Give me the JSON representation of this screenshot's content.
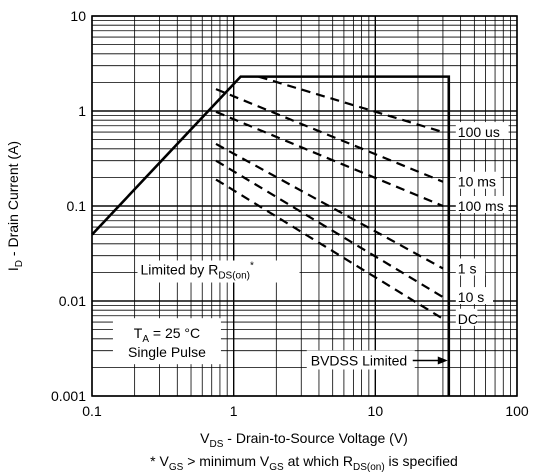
{
  "chart_data": {
    "type": "line",
    "xlabel": {
      "main": "V",
      "sub": "DS",
      "rest": " - Drain-to-Source Voltage (V)"
    },
    "ylabel": {
      "main": "I",
      "sub": "D",
      "rest": " - Drain Current (A)"
    },
    "footnote": {
      "p1": "* V",
      "s1": "GS",
      "p2": " > minimum V",
      "s2": "GS",
      "p3": " at which R",
      "s3": "DS(on)",
      "p4": " is specified"
    },
    "x_scale": "log",
    "y_scale": "log",
    "xlim": [
      0.1,
      100
    ],
    "ylim": [
      0.001,
      10
    ],
    "x_ticks": [
      {
        "value": 0.1,
        "label": "0.1"
      },
      {
        "value": 1,
        "label": "1"
      },
      {
        "value": 10,
        "label": "10"
      },
      {
        "value": 100,
        "label": "100"
      }
    ],
    "y_ticks": [
      {
        "value": 0.001,
        "label": "0.001"
      },
      {
        "value": 0.01,
        "label": "0.01"
      },
      {
        "value": 0.1,
        "label": "0.1"
      },
      {
        "value": 1,
        "label": "1"
      },
      {
        "value": 10,
        "label": "10"
      }
    ],
    "grid": true,
    "safe_operating_area": {
      "x": [
        0.1,
        1.12,
        1.12,
        33,
        33
      ],
      "y": [
        0.05,
        2.3,
        2.3,
        2.3,
        0.001
      ]
    },
    "pulse_lines": [
      {
        "label": "100 us",
        "label_value": 0.6,
        "x": [
          1.5,
          30
        ],
        "y": [
          2.3,
          0.6
        ]
      },
      {
        "label": "10 ms",
        "label_value": 0.18,
        "x": [
          0.75,
          30
        ],
        "y": [
          1.7,
          0.18
        ]
      },
      {
        "label": "100 ms",
        "label_value": 0.1,
        "x": [
          0.75,
          30
        ],
        "y": [
          0.98,
          0.1
        ]
      },
      {
        "label": "1 s",
        "label_value": 0.022,
        "x": [
          0.75,
          30
        ],
        "y": [
          0.45,
          0.022
        ]
      },
      {
        "label": "10 s",
        "label_value": 0.011,
        "x": [
          0.75,
          30
        ],
        "y": [
          0.3,
          0.011
        ]
      },
      {
        "label": "DC",
        "label_value": 0.0065,
        "x": [
          0.75,
          30
        ],
        "y": [
          0.19,
          0.0065
        ]
      }
    ],
    "annotations": {
      "rds_limit": {
        "main": "Limited by R",
        "sub": "DS(on)",
        "sup": "*",
        "x": 0.22,
        "y": 0.019
      },
      "conditions": {
        "line1_main": "T",
        "line1_sub": "A",
        "line1_rest": " = 25 °C",
        "line2": "Single Pulse",
        "x": 0.15,
        "y": 0.0025
      },
      "bvdss": {
        "text": "BVDSS Limited",
        "x": 3.5,
        "y": 0.0022
      }
    },
    "style": {
      "line_color": "#000000",
      "grid_color": "#000000",
      "background": "#ffffff"
    }
  }
}
